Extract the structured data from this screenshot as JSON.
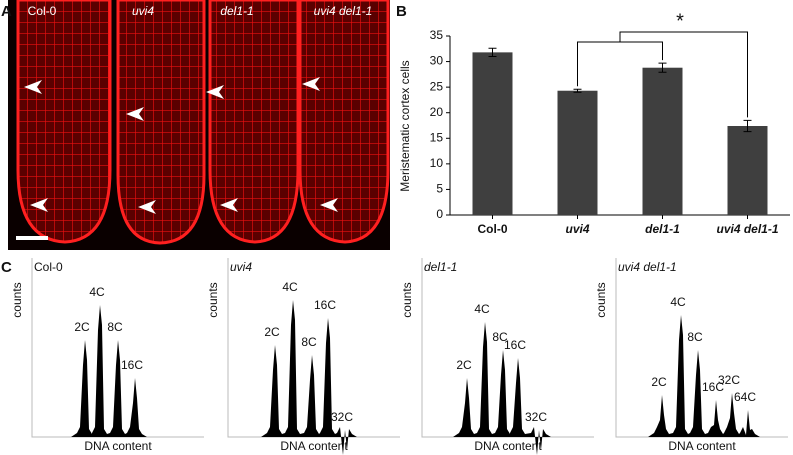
{
  "panel_a": {
    "label": "A",
    "genotypes": [
      "Col-0",
      "uvi4",
      "del1-1",
      "uvi4 del1-1"
    ]
  },
  "chart_data": {
    "type": "bar",
    "panel_label": "B",
    "y_label": "Meristematic cortex cells",
    "categories": [
      "Col-0",
      "uvi4",
      "del1-1",
      "uvi4 del1-1"
    ],
    "values": [
      31.8,
      24.3,
      28.8,
      17.4
    ],
    "errors": [
      0.8,
      0.3,
      0.9,
      1.1
    ],
    "color": "#3f3f3f",
    "ylim": [
      0,
      35
    ],
    "yticks": [
      0,
      5,
      10,
      15,
      20,
      25,
      30,
      35
    ],
    "significance": "*"
  },
  "panel_c": {
    "label": "C",
    "y_label": "counts",
    "x_label": "DNA content",
    "panels": [
      {
        "title": "Col-0",
        "peaks": [
          "2C",
          "4C",
          "8C",
          "16C"
        ]
      },
      {
        "title": "uvi4",
        "peaks": [
          "2C",
          "4C",
          "8C",
          "16C",
          "32C"
        ]
      },
      {
        "title": "del1-1",
        "peaks": [
          "2C",
          "4C",
          "8C",
          "16C",
          "32C"
        ]
      },
      {
        "title": "uvi4 del1-1",
        "peaks": [
          "2C",
          "4C",
          "8C",
          "16C",
          "32C",
          "64C"
        ]
      }
    ]
  }
}
